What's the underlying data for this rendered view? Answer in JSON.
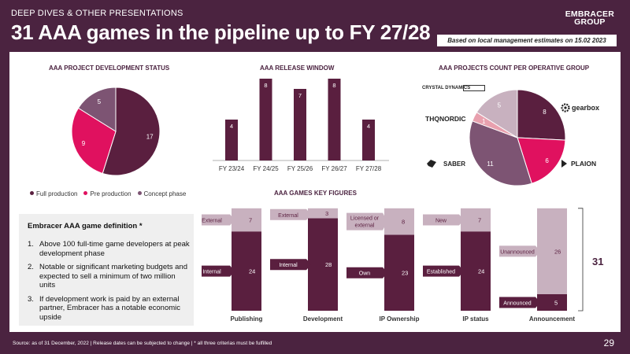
{
  "header": {
    "kicker": "DEEP DIVES & OTHER PRESENTATIONS",
    "title": "31 AAA games in the pipeline up to FY 27/28",
    "logo_line1": "EMBRACER",
    "logo_line2": "GROUP",
    "note": "Based on local management estimates on 15.02 2023"
  },
  "sections": {
    "status_title": "AAA PROJECT DEVELOPMENT STATUS",
    "release_title": "AAA RELEASE WINDOW",
    "group_title": "AAA PROJECTS COUNT PER OPERATIVE GROUP",
    "keyfig_title": "AAA GAMES KEY FIGURES"
  },
  "colors": {
    "dark": "#5a1f3f",
    "pink": "#e0115f",
    "mauve": "#7d5473",
    "light": "#c8b1bf",
    "rose": "#e8a0ae",
    "band": "#4b2340"
  },
  "legend": [
    "Full production",
    "Pre production",
    "Concept phase"
  ],
  "definition": {
    "title": "Embracer AAA game definition *",
    "items": [
      {
        "num": "1.",
        "text": "Above 100 full-time game developers at peak development phase"
      },
      {
        "num": "2.",
        "text": "Notable or significant marketing budgets and expected to sell a minimum of two million units"
      },
      {
        "num": "3.",
        "text": "If development work is paid by an external partner, Embracer has a notable economic upside"
      }
    ]
  },
  "groups_brands": {
    "crystal": "CRYSTAL DYNAMICS",
    "thq": "THQNORDIC",
    "saber": "SABER",
    "gearbox": "gearbox",
    "plaion": "PLAION"
  },
  "total_label": "31",
  "footer": {
    "source": "Source: as of 31 December, 2022 | Release dates can be subjected to change | * all three criterias must be fulfilled",
    "page": "29"
  },
  "chart_data": [
    {
      "type": "pie",
      "title": "AAA PROJECT DEVELOPMENT STATUS",
      "categories": [
        "Full production",
        "Pre production",
        "Concept phase"
      ],
      "values": [
        17,
        9,
        5
      ],
      "legend": "bottom"
    },
    {
      "type": "bar",
      "title": "AAA RELEASE WINDOW",
      "categories": [
        "FY 23/24",
        "FY 24/25",
        "FY 25/26",
        "FY 26/27",
        "FY 27/28"
      ],
      "values": [
        4,
        8,
        7,
        8,
        4
      ]
    },
    {
      "type": "pie",
      "title": "AAA PROJECTS COUNT PER OPERATIVE GROUP",
      "values": [
        8,
        6,
        11,
        1,
        5
      ]
    },
    {
      "type": "bar",
      "title": "AAA GAMES KEY FIGURES",
      "categories": [
        "Publishing",
        "Development",
        "IP Ownership",
        "IP status",
        "Announcement"
      ],
      "stacks": [
        {
          "bottom": {
            "label": "Internal",
            "value": 24
          },
          "top": {
            "label": "External",
            "value": 7
          }
        },
        {
          "bottom": {
            "label": "Internal",
            "value": 28
          },
          "top": {
            "label": "External",
            "value": 3
          }
        },
        {
          "bottom": {
            "label": "Own",
            "value": 23
          },
          "top": {
            "label": "Licensed or external",
            "value": 8
          }
        },
        {
          "bottom": {
            "label": "Established",
            "value": 24
          },
          "top": {
            "label": "New",
            "value": 7
          }
        },
        {
          "bottom": {
            "label": "Announced",
            "value": 5
          },
          "top": {
            "label": "Unannounced",
            "value": 26
          }
        }
      ],
      "total": 31
    }
  ]
}
